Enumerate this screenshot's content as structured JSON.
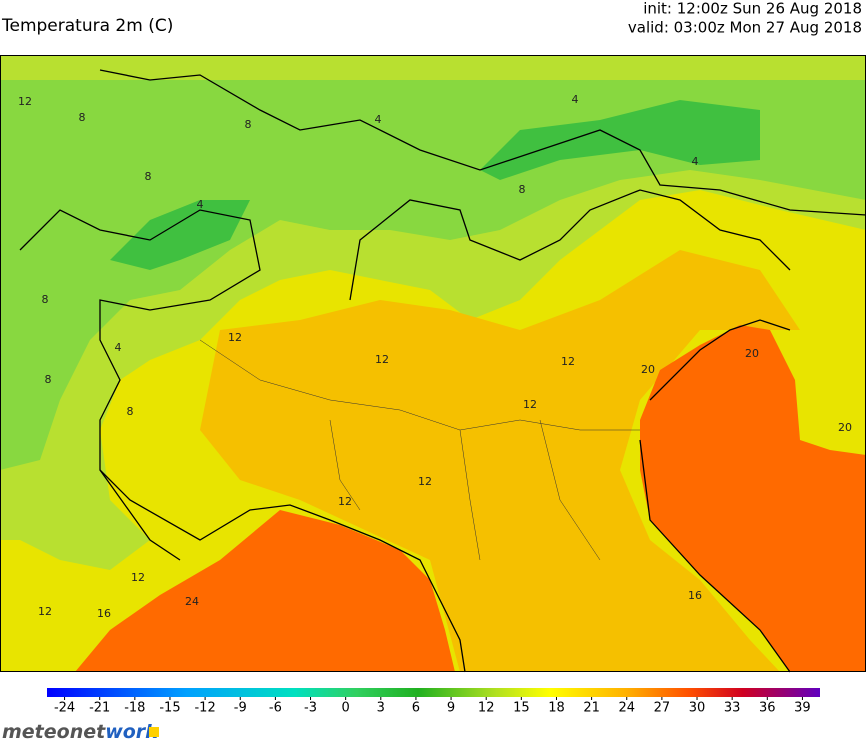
{
  "title": "Temperatura 2m (C)",
  "init": "init: 12:00z Sun 26 Aug 2018",
  "valid": "valid: 03:00z Mon 27 Aug 2018",
  "colorbar": {
    "lim": [
      -25.5,
      40.5
    ],
    "ticks": [
      -24,
      -21,
      -18,
      -15,
      -12,
      -9,
      -6,
      -3,
      0,
      3,
      6,
      9,
      12,
      15,
      18,
      21,
      24,
      27,
      30,
      33,
      36,
      39
    ]
  },
  "logo": [
    "meteonet",
    "work"
  ],
  "contour_labels": [
    "12",
    "8",
    "8",
    "4",
    "8",
    "4",
    "4",
    "4",
    "8",
    "8",
    "8",
    "12",
    "12",
    "12",
    "12",
    "12",
    "12",
    "12",
    "16",
    "24",
    "20",
    "20",
    "20",
    "16",
    "12",
    "8",
    "4"
  ]
}
